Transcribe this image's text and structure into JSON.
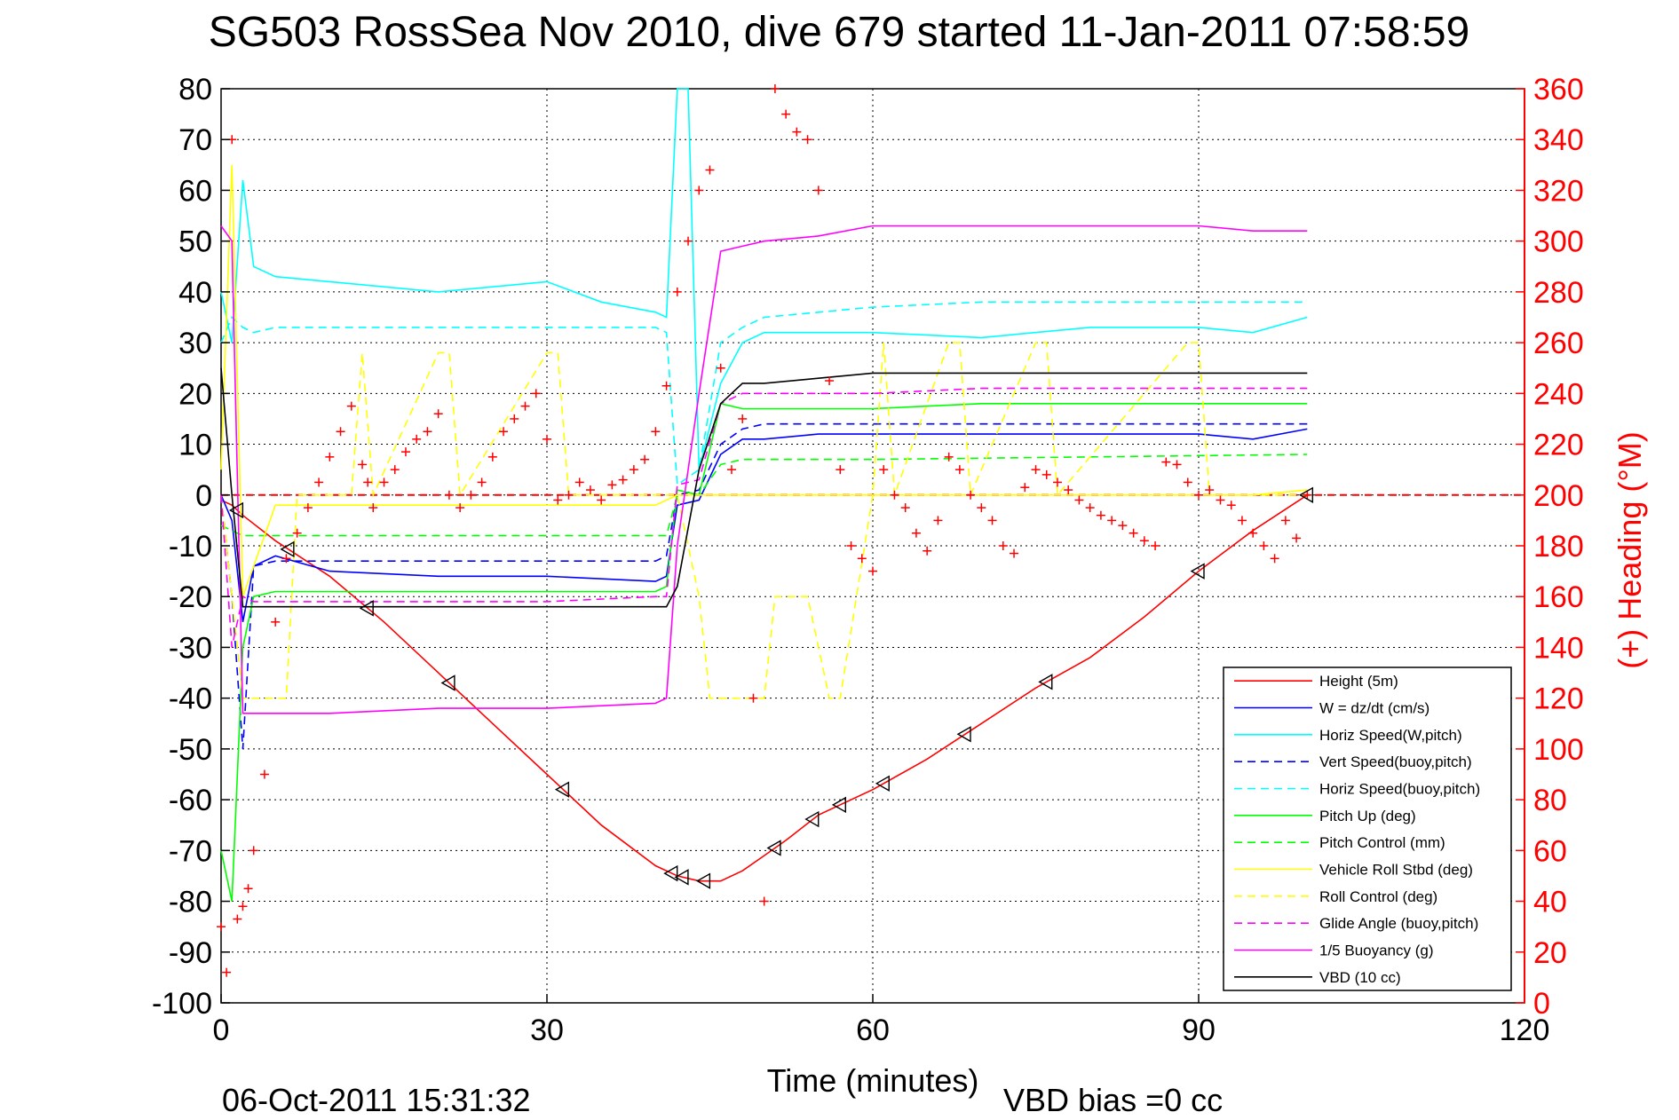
{
  "chart_data": {
    "type": "line",
    "title": "SG503 RossSea Nov 2010, dive 679 started 11-Jan-2011 07:58:59",
    "xlabel": "Time (minutes)",
    "ylabel_right": "(+) Heading (°M)",
    "xlim": [
      0,
      120
    ],
    "ylim": [
      -100,
      80
    ],
    "ylim_right": [
      0,
      360
    ],
    "x_ticks": [
      "0",
      "30",
      "60",
      "90",
      "120"
    ],
    "y_ticks_left": [
      "80",
      "70",
      "60",
      "50",
      "40",
      "30",
      "20",
      "10",
      "0",
      "-10",
      "-20",
      "-30",
      "-40",
      "-50",
      "-60",
      "-70",
      "-80",
      "-90",
      "-100"
    ],
    "y_ticks_right": [
      "360",
      "340",
      "320",
      "300",
      "280",
      "260",
      "240",
      "220",
      "200",
      "180",
      "160",
      "140",
      "120",
      "100",
      "80",
      "60",
      "40",
      "20",
      "0"
    ],
    "grid": true,
    "legend_position": "bottom-right",
    "footer_date": "06-Oct-2011 15:31:32",
    "footer_note": "VBD bias =0 cc",
    "series": [
      {
        "name": "Height (5m)",
        "color": "#ff0000",
        "dash": "solid",
        "x": [
          0,
          1,
          2,
          5,
          10,
          15,
          20,
          25,
          30,
          35,
          40,
          42,
          44,
          46,
          48,
          50,
          52,
          55,
          60,
          65,
          70,
          75,
          80,
          85,
          90,
          95,
          100
        ],
        "y": [
          -1,
          -2,
          -4,
          -9,
          -16,
          -25,
          -35,
          -45,
          -55,
          -65,
          -73,
          -75,
          -76,
          -76,
          -74,
          -71,
          -68,
          -63,
          -58,
          -52,
          -45,
          -38,
          -32,
          -24,
          -15,
          -7,
          0
        ]
      },
      {
        "name": "W = dz/dt (cm/s)",
        "color": "#0000ff",
        "dash": "solid",
        "x": [
          0,
          1,
          2,
          3,
          5,
          10,
          20,
          30,
          40,
          41,
          42,
          44,
          46,
          48,
          50,
          55,
          60,
          70,
          80,
          90,
          95,
          100
        ],
        "y": [
          0,
          -5,
          -25,
          -14,
          -12,
          -15,
          -16,
          -16,
          -17,
          -16,
          -2,
          -1,
          8,
          11,
          11,
          12,
          12,
          12,
          12,
          12,
          11,
          13
        ]
      },
      {
        "name": "Horiz Speed(W,pitch)",
        "color": "#00ffff",
        "dash": "solid",
        "x": [
          0,
          1,
          2,
          3,
          5,
          10,
          20,
          30,
          35,
          40,
          41,
          42,
          43,
          44,
          46,
          48,
          50,
          55,
          60,
          70,
          80,
          90,
          95,
          100
        ],
        "y": [
          40,
          30,
          62,
          45,
          43,
          42,
          40,
          42,
          38,
          36,
          35,
          80,
          80,
          5,
          22,
          30,
          32,
          32,
          32,
          31,
          33,
          33,
          32,
          35
        ]
      },
      {
        "name": "Vert Speed(buoy,pitch)",
        "color": "#0000ff",
        "dash": "dashed",
        "x": [
          0,
          1,
          2,
          3,
          5,
          10,
          20,
          30,
          40,
          41,
          42,
          44,
          46,
          48,
          50,
          60,
          70,
          80,
          90,
          100
        ],
        "y": [
          0,
          -20,
          -50,
          -14,
          -13,
          -13,
          -13,
          -13,
          -13,
          -12,
          0,
          1,
          10,
          13,
          14,
          14,
          14,
          14,
          14,
          14
        ]
      },
      {
        "name": "Horiz Speed(buoy,pitch)",
        "color": "#00ffff",
        "dash": "dashed",
        "x": [
          0,
          1,
          2,
          3,
          5,
          10,
          20,
          30,
          40,
          41,
          42,
          44,
          46,
          48,
          50,
          60,
          70,
          80,
          90,
          100
        ],
        "y": [
          30,
          35,
          33,
          32,
          33,
          33,
          33,
          33,
          33,
          32,
          2,
          5,
          30,
          33,
          35,
          37,
          38,
          38,
          38,
          38
        ]
      },
      {
        "name": "Pitch Up (deg)",
        "color": "#00ff00",
        "dash": "solid",
        "x": [
          0,
          1,
          2,
          3,
          5,
          10,
          20,
          30,
          40,
          41,
          42,
          44,
          46,
          48,
          50,
          60,
          70,
          80,
          90,
          100
        ],
        "y": [
          -70,
          -80,
          -30,
          -20,
          -19,
          -19,
          -19,
          -19,
          -19,
          -18,
          1,
          0,
          18,
          17,
          17,
          17,
          18,
          18,
          18,
          18
        ]
      },
      {
        "name": "Pitch Control (mm)",
        "color": "#00ff00",
        "dash": "dashed",
        "x": [
          0,
          2,
          3,
          40,
          41,
          42,
          44,
          46,
          48,
          60,
          100
        ],
        "y": [
          -6,
          -8,
          -8,
          -8,
          -8,
          0,
          0,
          6,
          7,
          7,
          8
        ]
      },
      {
        "name": "Vehicle Roll Stbd (deg)",
        "color": "#ffff00",
        "dash": "solid",
        "x": [
          0,
          1,
          2,
          5,
          10,
          20,
          30,
          40,
          42,
          44,
          46,
          50,
          55,
          60,
          70,
          80,
          90,
          95,
          100
        ],
        "y": [
          5,
          65,
          -20,
          -2,
          -2,
          -2,
          -2,
          -2,
          0,
          0,
          0,
          0,
          0,
          0,
          0,
          0,
          0,
          0,
          1
        ]
      },
      {
        "name": "Roll Control (deg)",
        "color": "#ffff00",
        "dash": "dashed",
        "x": [
          0,
          2,
          3,
          6,
          7,
          12,
          13,
          14,
          20,
          21,
          22,
          30,
          31,
          32,
          42,
          44,
          45,
          50,
          51,
          54,
          56,
          57,
          60,
          61,
          62,
          67,
          68,
          69,
          75,
          76,
          77,
          89,
          90,
          91,
          100
        ],
        "y": [
          0,
          -40,
          -40,
          -40,
          0,
          0,
          28,
          0,
          28,
          28,
          0,
          28,
          28,
          0,
          0,
          -20,
          -40,
          -40,
          -20,
          -20,
          -40,
          -40,
          0,
          30,
          0,
          30,
          30,
          0,
          30,
          30,
          0,
          30,
          30,
          0,
          0
        ]
      },
      {
        "name": "Glide Angle (buoy,pitch)",
        "color": "#ff00ff",
        "dash": "dashed",
        "x": [
          0,
          1,
          2,
          3,
          10,
          20,
          30,
          40,
          41,
          42,
          44,
          46,
          48,
          60,
          70,
          80,
          90,
          100
        ],
        "y": [
          0,
          -30,
          -20,
          -21,
          -21,
          -21,
          -21,
          -20,
          -20,
          2,
          3,
          18,
          20,
          20,
          21,
          21,
          21,
          21
        ]
      },
      {
        "name": "1/5 Buoyancy (g)",
        "color": "#ff00ff",
        "dash": "solid",
        "x": [
          0,
          1,
          2,
          3,
          10,
          20,
          30,
          40,
          41,
          42,
          44,
          46,
          48,
          50,
          55,
          60,
          65,
          70,
          80,
          90,
          95,
          100
        ],
        "y": [
          53,
          50,
          -43,
          -43,
          -43,
          -42,
          -42,
          -41,
          -40,
          -10,
          20,
          48,
          49,
          50,
          51,
          53,
          53,
          53,
          53,
          53,
          52,
          52
        ]
      },
      {
        "name": "VBD (10 cc)",
        "color": "#000000",
        "dash": "solid",
        "x": [
          0,
          1,
          2,
          5,
          10,
          20,
          30,
          41,
          42,
          44,
          46,
          48,
          50,
          55,
          60,
          100
        ],
        "y": [
          25,
          0,
          -22,
          -22,
          -22,
          -22,
          -22,
          -22,
          -18,
          5,
          18,
          22,
          22,
          23,
          24,
          24
        ]
      }
    ],
    "heading": {
      "name": "Heading",
      "color": "#ff0000",
      "marker": "+",
      "axis": "right",
      "x": [
        0,
        0.5,
        1,
        1.5,
        2,
        2.5,
        3,
        4,
        5,
        6,
        7,
        8,
        9,
        10,
        11,
        12,
        13,
        13.5,
        14,
        15,
        16,
        17,
        18,
        19,
        20,
        21,
        22,
        23,
        24,
        25,
        26,
        27,
        28,
        29,
        30,
        31,
        32,
        33,
        34,
        35,
        36,
        37,
        38,
        39,
        40,
        41,
        42,
        43,
        44,
        45,
        46,
        47,
        48,
        49,
        50,
        51,
        52,
        53,
        54,
        55,
        56,
        57,
        58,
        59,
        60,
        61,
        62,
        63,
        64,
        65,
        66,
        67,
        68,
        69,
        70,
        71,
        72,
        73,
        74,
        75,
        76,
        77,
        78,
        79,
        80,
        81,
        82,
        83,
        84,
        85,
        86,
        87,
        88,
        89,
        90,
        91,
        92,
        93,
        94,
        95,
        96,
        97,
        98,
        99,
        100
      ],
      "y": [
        30,
        12,
        340,
        33,
        38,
        45,
        60,
        90,
        150,
        175,
        185,
        195,
        205,
        215,
        225,
        235,
        212,
        205,
        195,
        205,
        210,
        217,
        222,
        225,
        232,
        200,
        195,
        200,
        205,
        215,
        225,
        230,
        235,
        240,
        222,
        198,
        200,
        205,
        202,
        198,
        204,
        206,
        210,
        214,
        225,
        243,
        280,
        300,
        320,
        328,
        250,
        210,
        230,
        120,
        40,
        360,
        350,
        343,
        340,
        320,
        245,
        210,
        180,
        175,
        170,
        210,
        200,
        195,
        185,
        178,
        190,
        215,
        210,
        200,
        195,
        190,
        180,
        177,
        203,
        210,
        208,
        205,
        202,
        198,
        195,
        192,
        190,
        188,
        185,
        182,
        180,
        213,
        212,
        205,
        200,
        202,
        198,
        196,
        190,
        185,
        180,
        175,
        190,
        183,
        200
      ]
    }
  }
}
